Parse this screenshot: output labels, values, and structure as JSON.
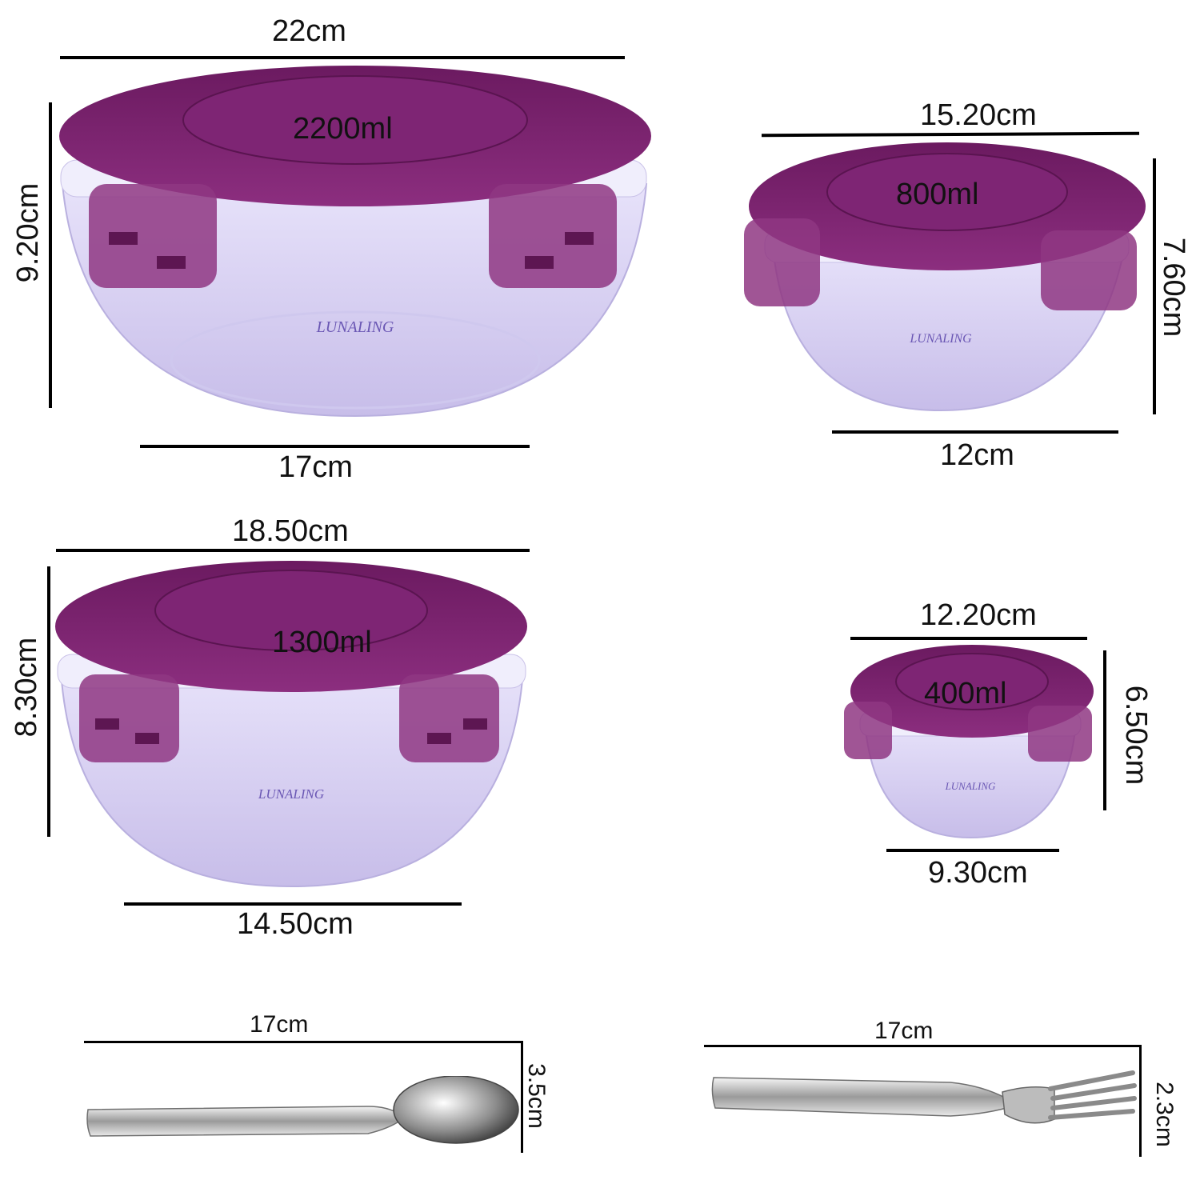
{
  "items": [
    {
      "name": "large-bowl",
      "capacity": "2200ml",
      "top_width": "22cm",
      "height": "9.20cm",
      "bottom_width": "17cm",
      "brand": "LUNALING",
      "lid_color": "#7a1f6e"
    },
    {
      "name": "medium-bowl",
      "capacity": "800ml",
      "top_width": "15.20cm",
      "height": "7.60cm",
      "bottom_width": "12cm",
      "brand": "LUNALING",
      "lid_color": "#7a1f6e"
    },
    {
      "name": "mid-large-bowl",
      "capacity": "1300ml",
      "top_width": "18.50cm",
      "height": "8.30cm",
      "bottom_width": "14.50cm",
      "brand": "LUNALING",
      "lid_color": "#7a1f6e"
    },
    {
      "name": "small-bowl",
      "capacity": "400ml",
      "top_width": "12.20cm",
      "height": "6.50cm",
      "bottom_width": "9.30cm",
      "brand": "LUNALING",
      "lid_color": "#7a1f6e"
    }
  ],
  "cutlery": {
    "spoon": {
      "length": "17cm",
      "width": "3.5cm"
    },
    "fork": {
      "length": "17cm",
      "width": "2.3cm"
    }
  },
  "colors": {
    "lid": "#7a1f6e",
    "bowl": "#dcd6f4",
    "rule": "#000000"
  }
}
